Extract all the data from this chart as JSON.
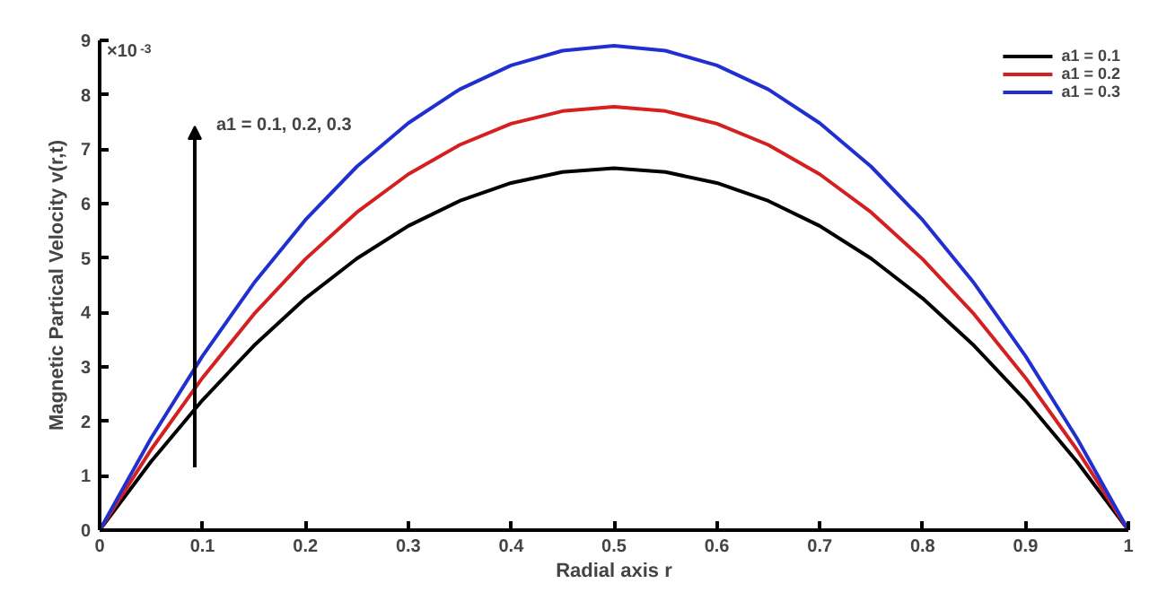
{
  "chart_data": {
    "type": "line",
    "xlabel": "Radial axis r",
    "ylabel": "Magnetic Partical Velocity v(r,t)",
    "x": [
      0,
      0.05,
      0.1,
      0.15,
      0.2,
      0.25,
      0.3,
      0.35,
      0.4,
      0.45,
      0.5,
      0.55,
      0.6,
      0.65,
      0.7,
      0.75,
      0.8,
      0.85,
      0.9,
      0.95,
      1
    ],
    "series": [
      {
        "name": "a1 = 0.1",
        "color": "#000000",
        "values": [
          0,
          1.26,
          2.39,
          3.39,
          4.26,
          4.99,
          5.59,
          6.05,
          6.38,
          6.58,
          6.65,
          6.58,
          6.38,
          6.05,
          5.59,
          4.99,
          4.26,
          3.39,
          2.39,
          1.26,
          0
        ]
      },
      {
        "name": "a1 = 0.2",
        "color": "#d42020",
        "values": [
          0,
          1.48,
          2.8,
          3.97,
          4.98,
          5.84,
          6.54,
          7.08,
          7.47,
          7.7,
          7.78,
          7.7,
          7.47,
          7.08,
          6.54,
          5.84,
          4.98,
          3.97,
          2.8,
          1.48,
          0
        ]
      },
      {
        "name": "a1 = 0.3",
        "color": "#2030d0",
        "values": [
          0,
          1.69,
          3.2,
          4.54,
          5.7,
          6.68,
          7.48,
          8.1,
          8.54,
          8.81,
          8.9,
          8.81,
          8.54,
          8.1,
          7.48,
          6.68,
          5.7,
          4.54,
          3.2,
          1.69,
          0
        ]
      }
    ],
    "xlim": [
      0,
      1
    ],
    "ylim": [
      0,
      9
    ],
    "xticks": [
      0,
      0.1,
      0.2,
      0.3,
      0.4,
      0.5,
      0.6,
      0.7,
      0.8,
      0.9,
      1
    ],
    "yticks": [
      0,
      1,
      2,
      3,
      4,
      5,
      6,
      7,
      8,
      9
    ],
    "annotations": [
      "×10$^{-3}$",
      "a1 = 0.1, 0.2, 0.3"
    ],
    "legend": "top right",
    "grid": false,
    "marker": "none",
    "line_style": "solid"
  }
}
